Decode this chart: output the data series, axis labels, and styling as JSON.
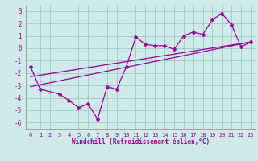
{
  "background_color": "#d0eaeb",
  "plot_bg_color": "#d0eaeb",
  "grid_color": "#a0c8cc",
  "line_color": "#990099",
  "spine_color": "#888888",
  "xlim": [
    -0.5,
    23.5
  ],
  "ylim": [
    -6.5,
    3.5
  ],
  "yticks": [
    -6,
    -5,
    -4,
    -3,
    -2,
    -1,
    0,
    1,
    2,
    3
  ],
  "xticks": [
    0,
    1,
    2,
    3,
    4,
    5,
    6,
    7,
    8,
    9,
    10,
    11,
    12,
    13,
    14,
    15,
    16,
    17,
    18,
    19,
    20,
    21,
    22,
    23
  ],
  "xlabel": "Windchill (Refroidissement éolien,°C)",
  "data_line": {
    "x": [
      0,
      1,
      3,
      4,
      5,
      6,
      7,
      8,
      9,
      10,
      11,
      12,
      13,
      14,
      15,
      16,
      17,
      18,
      19,
      20,
      21,
      22,
      23
    ],
    "y": [
      -1.5,
      -3.3,
      -3.7,
      -4.2,
      -4.8,
      -4.5,
      -5.7,
      -3.1,
      -3.3,
      -1.5,
      0.9,
      0.3,
      0.2,
      0.2,
      -0.1,
      1.0,
      1.3,
      1.1,
      2.3,
      2.8,
      1.9,
      0.1,
      0.5
    ]
  },
  "trend_line1": {
    "x": [
      0,
      23
    ],
    "y": [
      -3.1,
      0.5
    ]
  },
  "trend_line2": {
    "x": [
      0,
      23
    ],
    "y": [
      -2.3,
      0.5
    ]
  }
}
